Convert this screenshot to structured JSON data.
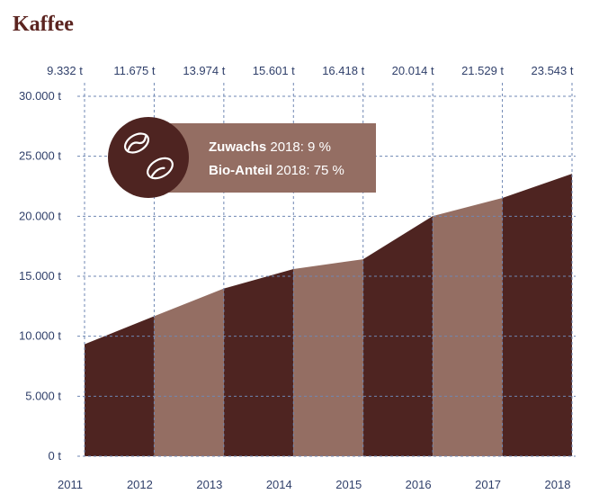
{
  "title": "Kaffee",
  "colors": {
    "dark": "#4e2421",
    "light": "#946e63",
    "grid": "#6f87b3",
    "text": "#2f3f6a",
    "title": "#5b2420",
    "callout_bg": "#946e63",
    "callout_circle": "#4e2421"
  },
  "callout": {
    "icon": "coffee-beans-icon",
    "line1_bold": "Zuwachs",
    "line1_rest": " 2018: 9 %",
    "line2_bold": "Bio-Anteil",
    "line2_rest": " 2018: 75 %"
  },
  "chart_data": {
    "type": "area",
    "title": "Kaffee",
    "x": [
      "2011",
      "2012",
      "2013",
      "2014",
      "2015",
      "2016",
      "2017",
      "2018"
    ],
    "values": [
      9332,
      11675,
      13974,
      15601,
      16418,
      20014,
      21529,
      23543
    ],
    "top_labels": [
      "9.332 t",
      "11.675 t",
      "13.974 t",
      "15.601 t",
      "16.418 t",
      "20.014 t",
      "21.529 t",
      "23.543 t"
    ],
    "y_ticks": [
      0,
      5000,
      10000,
      15000,
      20000,
      25000,
      30000
    ],
    "y_tick_labels": [
      "0 t",
      "5.000 t",
      "10.000 t",
      "15.000 t",
      "20.000 t",
      "25.000 t",
      "30.000 t"
    ],
    "ylim": [
      0,
      30000
    ],
    "unit": "t",
    "grid": true,
    "legend": "none"
  }
}
